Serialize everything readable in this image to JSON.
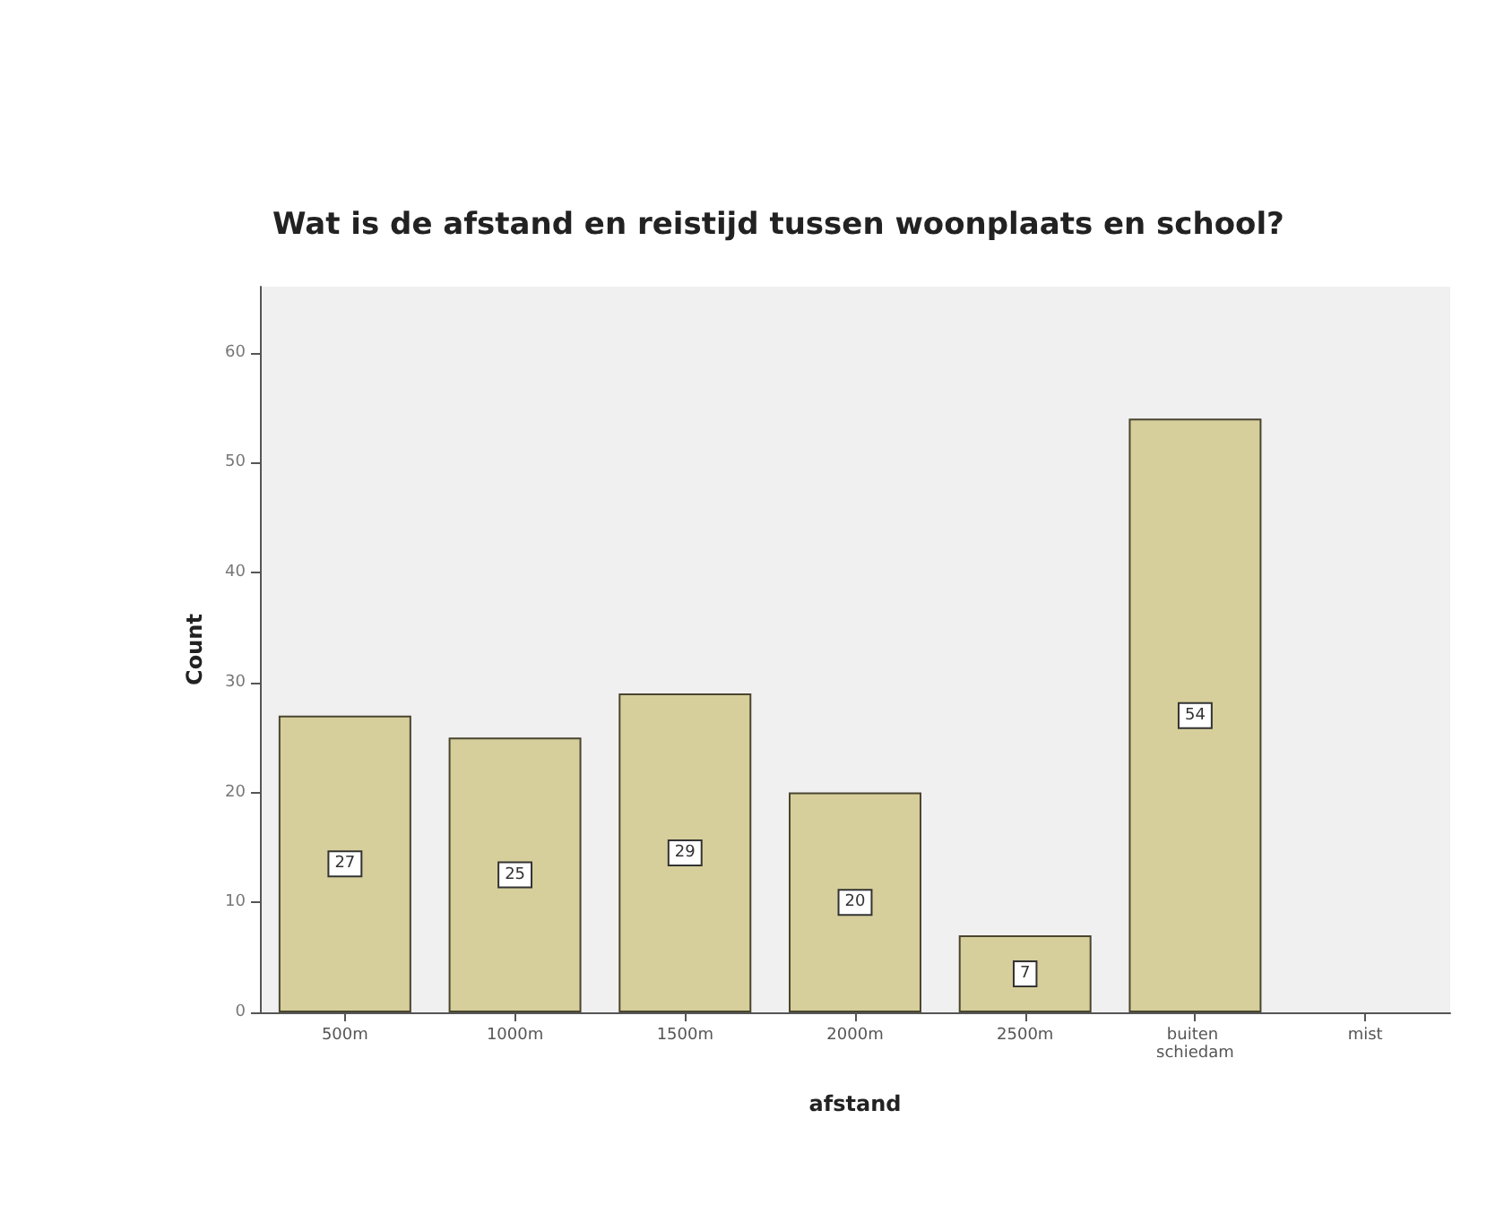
{
  "chart_data": {
    "type": "bar",
    "title": "Wat is de afstand en reistijd tussen woonplaats en school?",
    "xlabel": "afstand",
    "ylabel": "Count",
    "categories": [
      "500m",
      "1000m",
      "1500m",
      "2000m",
      "2500m",
      "buiten schiedam",
      "mist"
    ],
    "values": [
      27,
      25,
      29,
      20,
      7,
      54,
      null
    ],
    "value_labels": [
      "27",
      "25",
      "29",
      "20",
      "7",
      "54",
      null
    ],
    "color": "#d6cf9b",
    "ylim": [
      0,
      66
    ],
    "yticks": [
      0,
      10,
      20,
      30,
      40,
      50,
      60
    ],
    "grid": false
  }
}
